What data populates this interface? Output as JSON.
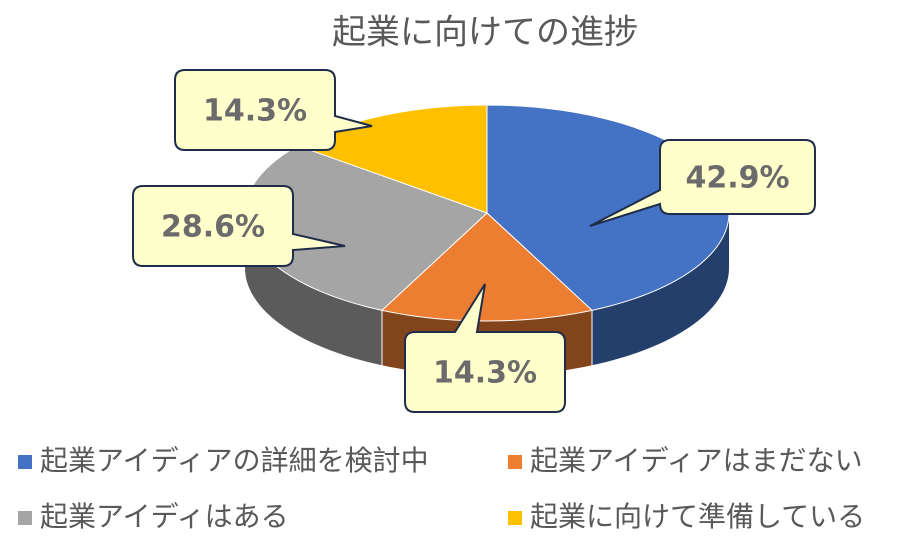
{
  "chart_data": {
    "type": "pie",
    "title": "起業に向けての進捗",
    "categories": [
      "起業アイディアの詳細を検討中",
      "起業アイディアはまだない",
      "起業アイディはある",
      "起業に向けて準備している"
    ],
    "values": [
      42.9,
      14.3,
      28.6,
      14.3
    ],
    "value_labels": [
      "42.9%",
      "14.3%",
      "28.6%",
      "14.3%"
    ],
    "colors": [
      "#4472C4",
      "#ED7D31",
      "#A5A5A5",
      "#FFC000"
    ]
  }
}
